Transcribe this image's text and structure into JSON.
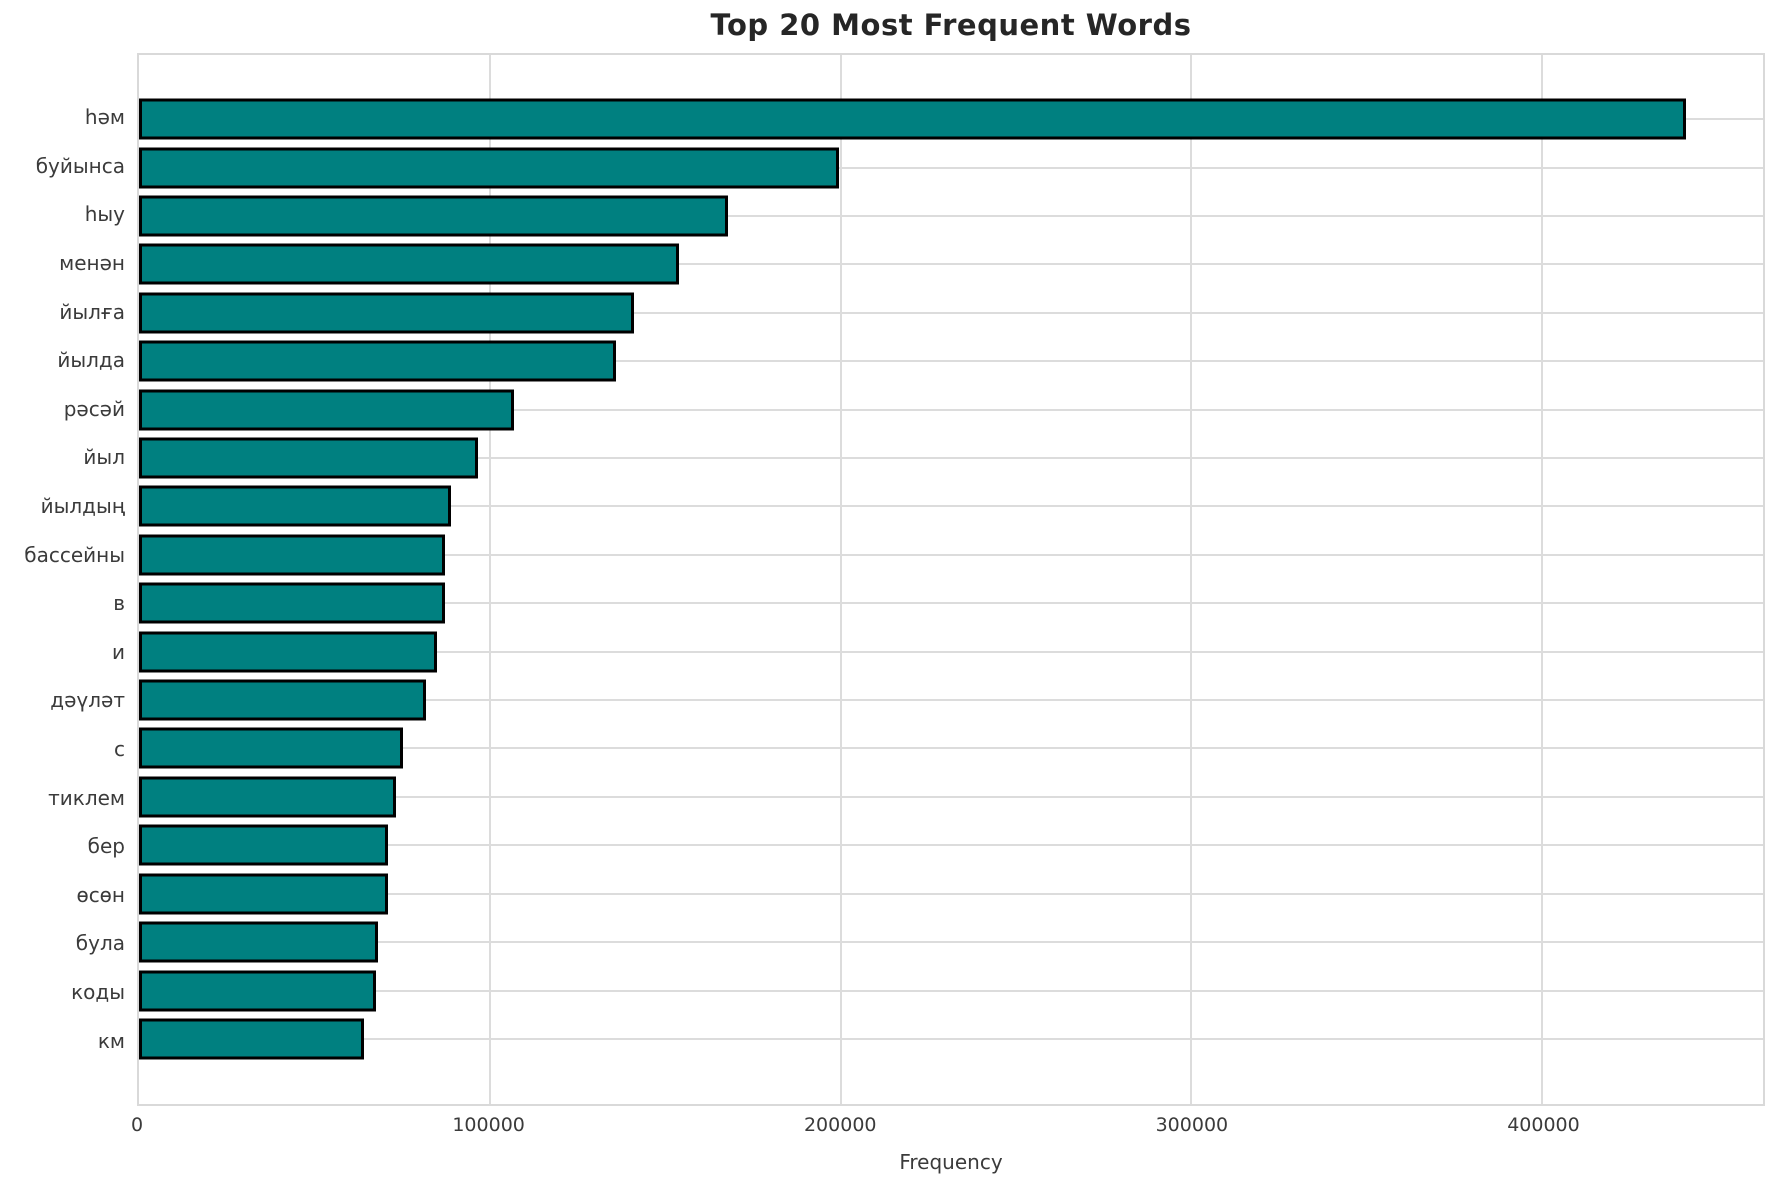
{
  "chart_data": {
    "type": "bar",
    "orientation": "horizontal",
    "title": "Top 20 Most Frequent Words",
    "xlabel": "Frequency",
    "ylabel": "",
    "categories": [
      "һәм",
      "буйынса",
      "һыу",
      "менән",
      "йылға",
      "йылда",
      "рәсәй",
      "йыл",
      "йылдың",
      "бассейны",
      "в",
      "и",
      "дәүләт",
      "с",
      "тиклем",
      "бер",
      "өсөн",
      "була",
      "коды",
      "км"
    ],
    "values": [
      441000,
      199700,
      168000,
      154000,
      141000,
      136000,
      107000,
      96700,
      88900,
      87200,
      87100,
      84900,
      81700,
      75200,
      73400,
      71100,
      70900,
      68000,
      67700,
      64200
    ],
    "xlim": [
      0,
      463000
    ],
    "x_ticks": [
      0,
      100000,
      200000,
      300000,
      400000
    ],
    "x_tick_labels": [
      "0",
      "100000",
      "200000",
      "300000",
      "400000"
    ],
    "grid": true,
    "legend": "none",
    "bar_color": "#008080",
    "bar_edge_color": "#000000",
    "grid_color": "#dcdcdc"
  }
}
